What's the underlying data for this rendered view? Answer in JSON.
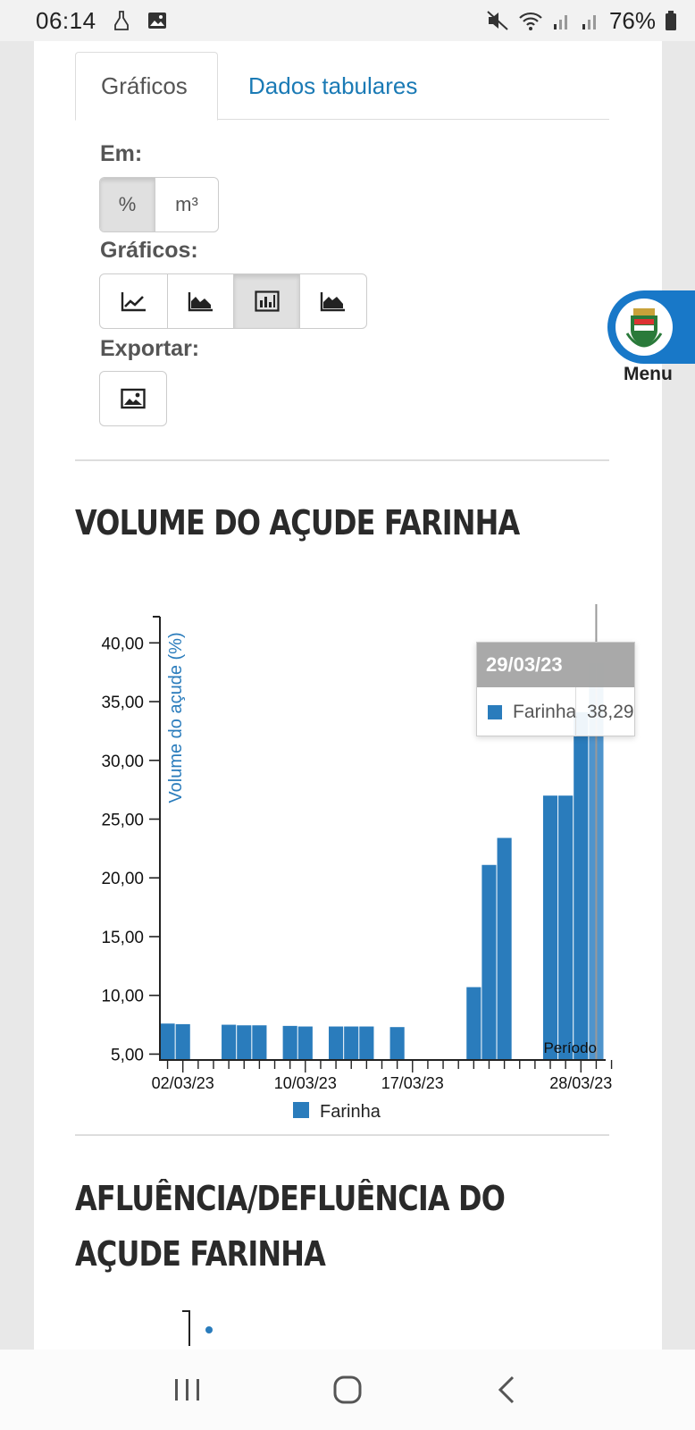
{
  "status_bar": {
    "time": "06:14",
    "battery": "76%",
    "icons_left": [
      "cleaning-icon",
      "image-icon"
    ],
    "icons_right": [
      "mute-icon",
      "wifi-icon",
      "signal-icon",
      "signal-icon",
      "battery-icon"
    ]
  },
  "tabs": [
    {
      "label": "Gráficos",
      "active": true
    },
    {
      "label": "Dados tabulares",
      "active": false
    }
  ],
  "controls": {
    "unit_label": "Em:",
    "unit_options": [
      "%",
      "m³"
    ],
    "unit_selected": "%",
    "chart_label": "Gráficos:",
    "chart_types": [
      "line-chart-icon",
      "area-chart-icon",
      "bar-chart-icon",
      "stacked-area-icon"
    ],
    "chart_selected": "bar-chart-icon",
    "export_label": "Exportar:",
    "export_icon": "image-icon"
  },
  "section1": {
    "title": "VOLUME DO AÇUDE FARINHA"
  },
  "chart_data": {
    "type": "bar",
    "title": "",
    "ylabel": "Volume do açude (%)",
    "xlabel": "Período",
    "ylim": [
      4.5,
      42
    ],
    "yticks": [
      5,
      10,
      15,
      20,
      25,
      30,
      35,
      40
    ],
    "ytick_labels": [
      "5,00",
      "10,00",
      "15,00",
      "20,00",
      "25,00",
      "30,00",
      "35,00",
      "40,00"
    ],
    "x_tick_labels": [
      "02/03/23",
      "10/03/23",
      "17/03/23",
      "28/03/23"
    ],
    "series": [
      {
        "name": "Farinha",
        "color": "#2a7cbc",
        "points": [
          {
            "date": "2023-03-01",
            "value": 7.6
          },
          {
            "date": "2023-03-02",
            "value": 7.55
          },
          {
            "date": "2023-03-05",
            "value": 7.5
          },
          {
            "date": "2023-03-06",
            "value": 7.45
          },
          {
            "date": "2023-03-07",
            "value": 7.45
          },
          {
            "date": "2023-03-09",
            "value": 7.4
          },
          {
            "date": "2023-03-10",
            "value": 7.35
          },
          {
            "date": "2023-03-12",
            "value": 7.35
          },
          {
            "date": "2023-03-13",
            "value": 7.35
          },
          {
            "date": "2023-03-14",
            "value": 7.35
          },
          {
            "date": "2023-03-16",
            "value": 7.3
          },
          {
            "date": "2023-03-21",
            "value": 10.7
          },
          {
            "date": "2023-03-22",
            "value": 21.1
          },
          {
            "date": "2023-03-23",
            "value": 23.4
          },
          {
            "date": "2023-03-26",
            "value": 27.0
          },
          {
            "date": "2023-03-27",
            "value": 27.0
          },
          {
            "date": "2023-03-28",
            "value": 34.1
          },
          {
            "date": "2023-03-29",
            "value": 38.29
          }
        ]
      }
    ],
    "legend": [
      "Farinha"
    ],
    "tooltip": {
      "date": "29/03/23",
      "series": "Farinha",
      "value": "38,29"
    }
  },
  "section2": {
    "title_line1": "AFLUÊNCIA/DEFLUÊNCIA DO",
    "title_line2": "AÇUDE FARINHA"
  },
  "menu": {
    "label": "Menu"
  }
}
